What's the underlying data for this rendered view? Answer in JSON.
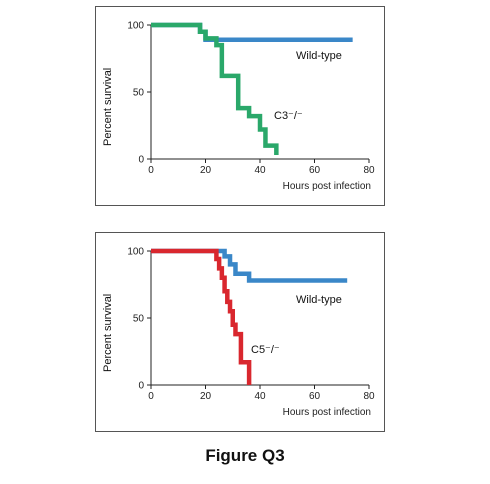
{
  "caption": "Figure Q3",
  "colors": {
    "wild_type": "#3a87c8",
    "c3": "#2aa86a",
    "c5": "#d9272e",
    "axis": "#222222"
  },
  "chart_data": [
    {
      "type": "line",
      "ylabel": "Percent survival",
      "xlabel": "Hours post infection",
      "xlim": [
        0,
        80
      ],
      "ylim": [
        0,
        100
      ],
      "xticks": [
        0,
        20,
        40,
        60,
        80
      ],
      "yticks": [
        0,
        50,
        100
      ],
      "grid": false,
      "step": true,
      "series": [
        {
          "name": "Wild-type",
          "label": "Wild-type",
          "color": "#3a87c8",
          "x": [
            0,
            18,
            20,
            74
          ],
          "y": [
            100,
            95,
            89,
            89
          ]
        },
        {
          "name": "C3−/−",
          "label": "C3⁻/⁻",
          "color": "#2aa86a",
          "x": [
            0,
            18,
            20,
            24,
            26,
            32,
            36,
            40,
            42,
            46
          ],
          "y": [
            100,
            95,
            90,
            85,
            62,
            38,
            32,
            22,
            10,
            3
          ]
        }
      ]
    },
    {
      "type": "line",
      "ylabel": "Percent survival",
      "xlabel": "Hours post infection",
      "xlim": [
        0,
        80
      ],
      "ylim": [
        0,
        100
      ],
      "xticks": [
        0,
        20,
        40,
        60,
        80
      ],
      "yticks": [
        0,
        50,
        100
      ],
      "grid": false,
      "step": true,
      "series": [
        {
          "name": "Wild-type",
          "label": "Wild-type",
          "color": "#3a87c8",
          "x": [
            0,
            27,
            29,
            31,
            36,
            72
          ],
          "y": [
            100,
            96,
            90,
            83,
            78,
            78
          ]
        },
        {
          "name": "C5−/−",
          "label": "C5⁻/⁻",
          "color": "#d9272e",
          "x": [
            0,
            24,
            25,
            26,
            27,
            28,
            29,
            30,
            31,
            33,
            36
          ],
          "y": [
            100,
            94,
            87,
            80,
            70,
            62,
            55,
            45,
            38,
            17,
            0
          ]
        }
      ]
    }
  ]
}
